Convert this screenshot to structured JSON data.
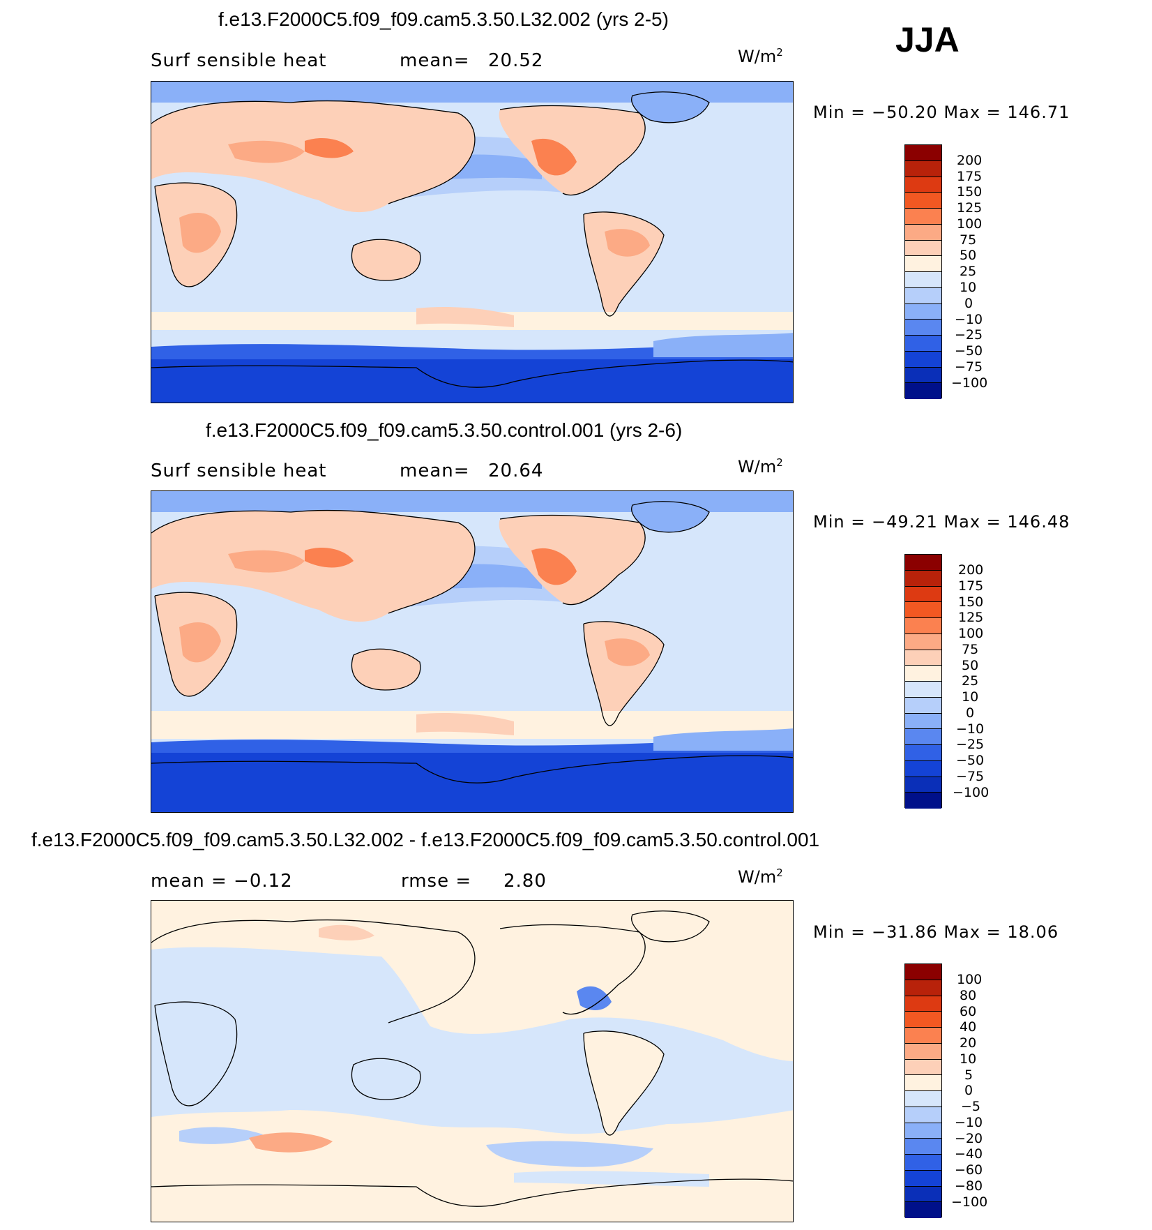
{
  "season": "JJA",
  "units": "W/m",
  "units_sup": "2",
  "panels": [
    {
      "title": "f.e13.F2000C5.f09_f09.cam5.3.50.L32.002 (yrs 2-5)",
      "left_label": "Surf sensible heat",
      "stat_label": "mean=",
      "stat_value": "20.52",
      "minmax": "Min = −50.20  Max = 146.71",
      "colorbar_labels": [
        "200",
        "175",
        "150",
        "125",
        "100",
        "75",
        "50",
        "25",
        "10",
        "0",
        "−10",
        "−25",
        "−50",
        "−75",
        "−100"
      ]
    },
    {
      "title": "f.e13.F2000C5.f09_f09.cam5.3.50.control.001 (yrs 2-6)",
      "left_label": "Surf sensible heat",
      "stat_label": "mean=",
      "stat_value": "20.64",
      "minmax": "Min = −49.21  Max = 146.48",
      "colorbar_labels": [
        "200",
        "175",
        "150",
        "125",
        "100",
        "75",
        "50",
        "25",
        "10",
        "0",
        "−10",
        "−25",
        "−50",
        "−75",
        "−100"
      ]
    },
    {
      "title": "f.e13.F2000C5.f09_f09.cam5.3.50.L32.002 - f.e13.F2000C5.f09_f09.cam5.3.50.control.001",
      "left_label": "mean =   −0.12",
      "stat_label": "rmse =",
      "stat_value": "2.80",
      "minmax": "Min = −31.86  Max =   18.06",
      "colorbar_labels": [
        "100",
        "80",
        "60",
        "40",
        "20",
        "10",
        "5",
        "0",
        "−5",
        "−10",
        "−20",
        "−40",
        "−60",
        "−80",
        "−100"
      ]
    }
  ],
  "colors": {
    "scale": [
      "#8b0000",
      "#b8220a",
      "#dd3a12",
      "#f25822",
      "#fb8150",
      "#fcaa85",
      "#fdd0b8",
      "#fff2e0",
      "#d6e6fb",
      "#b6cffa",
      "#8ab0f8",
      "#5a87f0",
      "#3061e6",
      "#1443d6",
      "#0a2fb8",
      "#00108a"
    ],
    "ocean_full": "#d6e6fb",
    "land_full": "#fdd0b8",
    "antarctic": "#1443d6",
    "ocean_diff": "#d6e6fb",
    "land_diff": "#fff2e0"
  }
}
